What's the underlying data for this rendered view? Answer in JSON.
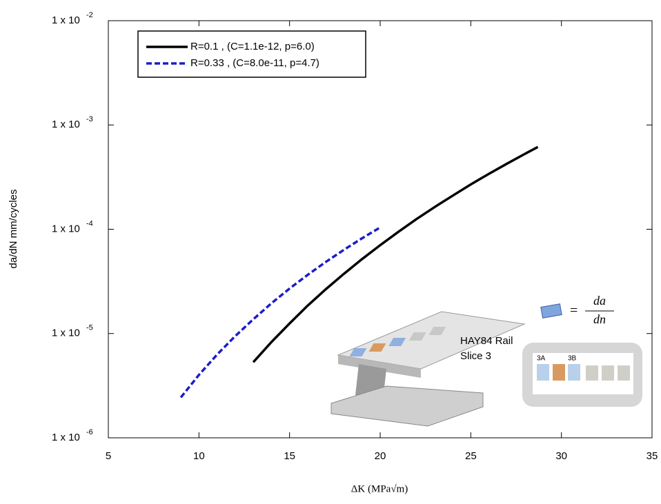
{
  "chart_data": {
    "type": "line",
    "xlabel": "ΔK (MPa√m)",
    "ylabel": "da/dN mm/cycles",
    "xlim": [
      5,
      35
    ],
    "xticks": [
      5,
      10,
      15,
      20,
      25,
      30,
      35
    ],
    "ylim": [
      1e-06,
      0.01
    ],
    "log_y": true,
    "yticks": [
      {
        "value": 1e-06,
        "label": "1 x 10",
        "exponent": "-6"
      },
      {
        "value": 1e-05,
        "label": "1 x 10",
        "exponent": "-5"
      },
      {
        "value": 0.0001,
        "label": "1 x 10",
        "exponent": "-4"
      },
      {
        "value": 0.001,
        "label": "1 x 10",
        "exponent": "-3"
      },
      {
        "value": 0.01,
        "label": "1 x 10",
        "exponent": "-2"
      }
    ],
    "legend": "upper left",
    "series": [
      {
        "name": "R=0.1   , (C=1.1e-12, p=6.0)",
        "color": "#000000",
        "dash": false,
        "x": [
          13,
          14,
          15,
          16,
          17,
          18,
          19,
          20,
          21,
          22,
          23,
          24,
          25,
          26,
          27,
          28,
          28.7
        ],
        "values": [
          5.31e-06,
          8.28e-06,
          1.25e-05,
          1.85e-05,
          2.66e-05,
          3.74e-05,
          5.17e-05,
          7.04e-05,
          9.44e-05,
          0.000125,
          0.000163,
          0.00021,
          0.000269,
          0.00034,
          0.000426,
          0.00053,
          0.000615
        ]
      },
      {
        "name": "R=0.33 , (C=8.0e-11, p=4.7)",
        "color": "#1c1cc8",
        "dash": true,
        "x": [
          9,
          10,
          11,
          12,
          13,
          14,
          15,
          16,
          17,
          18,
          19,
          20
        ],
        "values": [
          2.44e-06,
          4.01e-06,
          6.28e-06,
          9.45e-06,
          1.37e-05,
          1.95e-05,
          2.7e-05,
          3.65e-05,
          4.86e-05,
          6.35e-05,
          8.19e-05,
          0.000104
        ]
      }
    ],
    "inset": {
      "rail_label": "HAY84 Rail",
      "slice_label": "Slice 3",
      "slice_a": "3A",
      "slice_b": "3B",
      "eq_num": "da",
      "eq_den": "dn",
      "eq_sign": "="
    }
  }
}
